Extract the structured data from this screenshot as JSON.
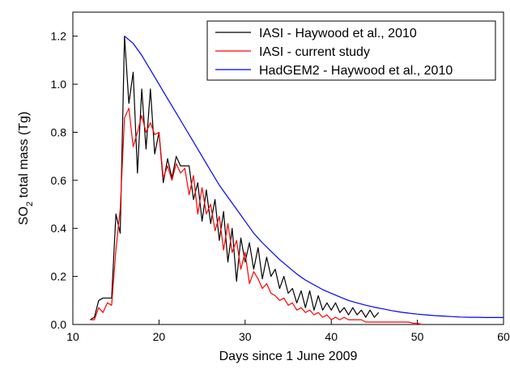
{
  "chart_data": {
    "type": "line",
    "title": "",
    "xlabel": "Days since 1 June 2009",
    "ylabel_main": "SO",
    "ylabel_sub": "2",
    "ylabel_rest": " total mass (Tg)",
    "xlim": [
      10,
      60
    ],
    "ylim": [
      0.0,
      1.3
    ],
    "xticks": [
      10,
      20,
      30,
      40,
      50,
      60
    ],
    "yticks": [
      0.0,
      0.2,
      0.4,
      0.6,
      0.8,
      1.0,
      1.2
    ],
    "ytick_labels": [
      "0.0",
      "0.2",
      "0.4",
      "0.6",
      "0.8",
      "1.0",
      "1.2"
    ],
    "grid": false,
    "legend_position": "top-right",
    "series": [
      {
        "name": "IASI - Haywood et al., 2010",
        "color": "#000000",
        "x": [
          12,
          12.5,
          13,
          13.5,
          14,
          14.5,
          15,
          15.5,
          16,
          16.5,
          17,
          17.5,
          18,
          18.5,
          19,
          19.5,
          20,
          20.5,
          21,
          21.5,
          22,
          22.5,
          23,
          23.5,
          24,
          24.5,
          25,
          25.5,
          26,
          26.5,
          27,
          27.5,
          28,
          28.5,
          29,
          29.5,
          30,
          30.5,
          31,
          31.5,
          32,
          32.5,
          33,
          33.5,
          34,
          34.5,
          35,
          35.5,
          36,
          36.5,
          37,
          37.5,
          38,
          38.5,
          39,
          39.5,
          40,
          40.5,
          41,
          41.5,
          42,
          42.5,
          43,
          43.5,
          44,
          44.5,
          45,
          45.5
        ],
        "values": [
          0.02,
          0.03,
          0.1,
          0.11,
          0.11,
          0.11,
          0.46,
          0.38,
          1.2,
          0.92,
          1.05,
          0.63,
          0.98,
          0.73,
          0.98,
          0.71,
          0.8,
          0.59,
          0.69,
          0.61,
          0.7,
          0.66,
          0.66,
          0.66,
          0.52,
          0.59,
          0.43,
          0.56,
          0.42,
          0.52,
          0.35,
          0.47,
          0.26,
          0.4,
          0.18,
          0.36,
          0.26,
          0.34,
          0.23,
          0.32,
          0.19,
          0.28,
          0.2,
          0.23,
          0.15,
          0.2,
          0.13,
          0.15,
          0.09,
          0.14,
          0.07,
          0.14,
          0.06,
          0.12,
          0.06,
          0.09,
          0.06,
          0.09,
          0.05,
          0.07,
          0.04,
          0.07,
          0.04,
          0.06,
          0.03,
          0.06,
          0.03,
          0.05
        ]
      },
      {
        "name": "IASI - current study",
        "color": "#ff0000",
        "x": [
          12,
          12.5,
          13,
          13.5,
          14,
          14.5,
          15,
          15.5,
          16,
          16.5,
          17,
          17.5,
          18,
          18.5,
          19,
          19.5,
          20,
          20.5,
          21,
          21.5,
          22,
          22.5,
          23,
          23.5,
          24,
          24.5,
          25,
          25.5,
          26,
          26.5,
          27,
          27.5,
          28,
          28.5,
          29,
          29.5,
          30,
          30.5,
          31,
          31.5,
          32,
          32.5,
          33,
          33.5,
          34,
          34.5,
          35,
          35.5,
          36,
          36.5,
          37,
          37.5,
          38,
          38.5,
          39,
          39.5,
          40,
          40.5,
          41,
          41.5,
          42,
          42.5,
          43,
          43.5,
          44,
          44.5,
          45,
          45.5,
          46,
          46.5,
          47,
          47.5,
          48,
          48.5,
          49,
          49.5,
          50,
          50.5
        ],
        "values": [
          0.02,
          0.02,
          0.07,
          0.05,
          0.09,
          0.08,
          0.31,
          0.48,
          0.86,
          0.9,
          0.74,
          0.8,
          0.87,
          0.8,
          0.84,
          0.79,
          0.8,
          0.61,
          0.66,
          0.6,
          0.67,
          0.63,
          0.65,
          0.54,
          0.62,
          0.46,
          0.57,
          0.46,
          0.5,
          0.39,
          0.45,
          0.31,
          0.42,
          0.3,
          0.35,
          0.23,
          0.3,
          0.17,
          0.22,
          0.19,
          0.15,
          0.17,
          0.13,
          0.12,
          0.1,
          0.11,
          0.08,
          0.09,
          0.06,
          0.07,
          0.05,
          0.06,
          0.04,
          0.05,
          0.03,
          0.04,
          0.02,
          0.03,
          0.02,
          0.03,
          0.02,
          0.02,
          0.02,
          0.02,
          0.01,
          0.01,
          0.01,
          0.01,
          0.01,
          0.01,
          0.01,
          0.01,
          0.01,
          0.01,
          0.01,
          0.005,
          0.005,
          0.0
        ]
      },
      {
        "name": "HadGEM2 - Haywood et al., 2010",
        "color": "#0000ff",
        "x": [
          16,
          17,
          18,
          19,
          20,
          21,
          22,
          23,
          24,
          25,
          26,
          27,
          28,
          29,
          30,
          31,
          32,
          33,
          34,
          35,
          36,
          37,
          38,
          39,
          40,
          41,
          42,
          43,
          44,
          45,
          46,
          47,
          48,
          49,
          50,
          51,
          52,
          53,
          54,
          55,
          56,
          57,
          58,
          59,
          60
        ],
        "values": [
          1.2,
          1.17,
          1.12,
          1.06,
          1.0,
          0.94,
          0.88,
          0.82,
          0.76,
          0.7,
          0.64,
          0.58,
          0.53,
          0.48,
          0.43,
          0.38,
          0.34,
          0.305,
          0.27,
          0.24,
          0.21,
          0.185,
          0.165,
          0.145,
          0.13,
          0.115,
          0.1,
          0.09,
          0.08,
          0.072,
          0.065,
          0.058,
          0.052,
          0.047,
          0.043,
          0.04,
          0.037,
          0.035,
          0.033,
          0.031,
          0.03,
          0.03,
          0.029,
          0.029,
          0.029
        ]
      }
    ]
  }
}
